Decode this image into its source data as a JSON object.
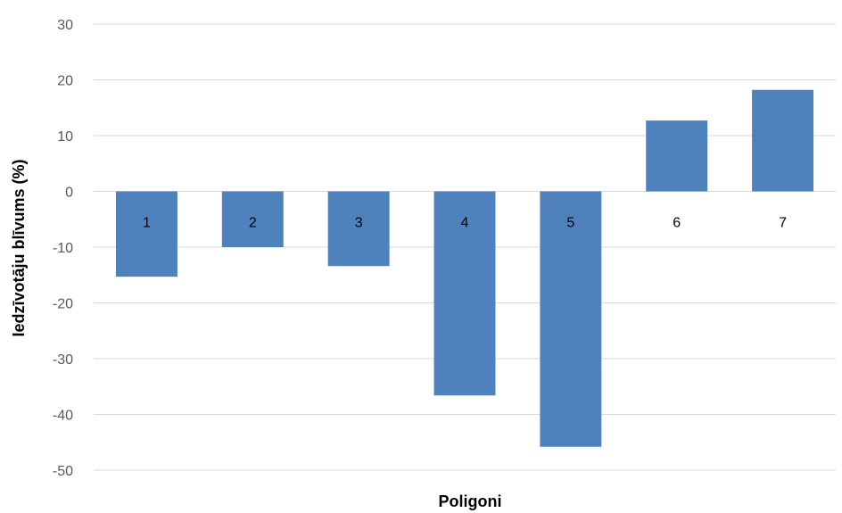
{
  "chart_data": {
    "type": "bar",
    "title": "",
    "xlabel": "Poligoni",
    "ylabel": "Iedzīvotāju blīvums (%)",
    "categories": [
      "1",
      "2",
      "3",
      "4",
      "5",
      "6",
      "7"
    ],
    "values": [
      -15.3,
      -10.0,
      -13.4,
      -36.6,
      -45.8,
      12.7,
      18.2
    ],
    "ylim": [
      -50,
      30
    ],
    "yticks": [
      -50,
      -40,
      -30,
      -20,
      -10,
      0,
      10,
      20,
      30
    ],
    "grid": true,
    "legend": "none",
    "colors": {
      "bar": "#4f81bd",
      "grid": "#d9d9d9"
    }
  }
}
